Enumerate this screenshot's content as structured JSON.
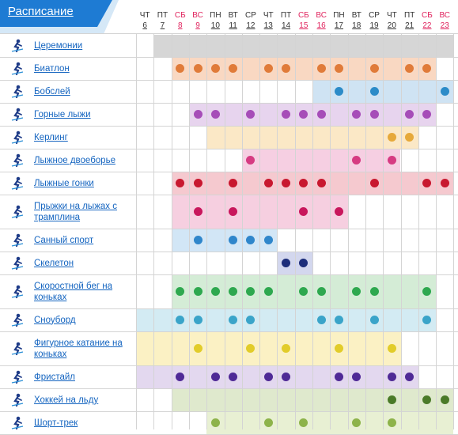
{
  "header": {
    "title": "Расписание"
  },
  "colors": {
    "header_blue": "#1e7bd3",
    "link": "#1565c0",
    "weekend": "#e0245e",
    "grid": "#d4d4d4",
    "icon": "#1f3c88"
  },
  "days": [
    {
      "dow": "ЧТ",
      "date": "6",
      "weekend": false
    },
    {
      "dow": "ПТ",
      "date": "7",
      "weekend": false
    },
    {
      "dow": "СБ",
      "date": "8",
      "weekend": true
    },
    {
      "dow": "ВС",
      "date": "9",
      "weekend": true
    },
    {
      "dow": "ПН",
      "date": "10",
      "weekend": false
    },
    {
      "dow": "ВТ",
      "date": "11",
      "weekend": false
    },
    {
      "dow": "СР",
      "date": "12",
      "weekend": false
    },
    {
      "dow": "ЧТ",
      "date": "13",
      "weekend": false
    },
    {
      "dow": "ПТ",
      "date": "14",
      "weekend": false
    },
    {
      "dow": "СБ",
      "date": "15",
      "weekend": true
    },
    {
      "dow": "ВС",
      "date": "16",
      "weekend": true
    },
    {
      "dow": "ПН",
      "date": "17",
      "weekend": false
    },
    {
      "dow": "ВТ",
      "date": "18",
      "weekend": false
    },
    {
      "dow": "СР",
      "date": "19",
      "weekend": false
    },
    {
      "dow": "ЧТ",
      "date": "20",
      "weekend": false
    },
    {
      "dow": "ПТ",
      "date": "21",
      "weekend": false
    },
    {
      "dow": "СБ",
      "date": "22",
      "weekend": true
    },
    {
      "dow": "ВС",
      "date": "23",
      "weekend": true
    }
  ],
  "sports": [
    {
      "name": "Церемонии",
      "icon": "ceremony-icon",
      "band": "#d6d6d6",
      "dot": null,
      "span": [
        1,
        17
      ],
      "finals": []
    },
    {
      "name": "Биатлон",
      "icon": "biathlon-icon",
      "band": "#f9d8c2",
      "dot": "#e07b39",
      "span": [
        2,
        16
      ],
      "finals": [
        2,
        3,
        4,
        5,
        7,
        8,
        10,
        11,
        13,
        15,
        16
      ]
    },
    {
      "name": "Бобслей",
      "icon": "bobsleigh-icon",
      "band": "#cfe3f3",
      "dot": "#2c8bc8",
      "span": [
        10,
        17
      ],
      "finals": [
        11,
        13,
        17
      ]
    },
    {
      "name": "Горные лыжи",
      "icon": "alpine-skiing-icon",
      "band": "#e7d4ee",
      "dot": "#a64db8",
      "span": [
        3,
        16
      ],
      "finals": [
        3,
        4,
        6,
        8,
        9,
        10,
        12,
        13,
        15,
        16
      ]
    },
    {
      "name": "Керлинг",
      "icon": "curling-icon",
      "band": "#fbe8c6",
      "dot": "#e6a93a",
      "span": [
        4,
        15
      ],
      "finals": [
        14,
        15
      ]
    },
    {
      "name": "Лыжное двоеборье",
      "icon": "nordic-combined-icon",
      "band": "#f6cfe2",
      "dot": "#d63b82",
      "span": [
        6,
        14
      ],
      "finals": [
        6,
        12,
        14
      ]
    },
    {
      "name": "Лыжные гонки",
      "icon": "cross-country-icon",
      "band": "#f5c9cf",
      "dot": "#c8182f",
      "span": [
        2,
        17
      ],
      "finals": [
        2,
        3,
        5,
        7,
        8,
        9,
        10,
        13,
        16,
        17
      ]
    },
    {
      "name": "Прыжки на лыжах с трамплина",
      "icon": "ski-jumping-icon",
      "band": "#f6cfe0",
      "dot": "#c8175c",
      "span": [
        2,
        11
      ],
      "finals": [
        3,
        5,
        9,
        11
      ]
    },
    {
      "name": "Санный спорт",
      "icon": "luge-icon",
      "band": "#d2e6f6",
      "dot": "#2f86cb",
      "span": [
        2,
        7
      ],
      "finals": [
        3,
        5,
        6,
        7
      ]
    },
    {
      "name": "Скелетон",
      "icon": "skeleton-icon",
      "band": "#d3d7ee",
      "dot": "#1d2d7a",
      "span": [
        8,
        9
      ],
      "finals": [
        8,
        9
      ]
    },
    {
      "name": "Скоростной бег на коньках",
      "icon": "speed-skating-icon",
      "band": "#d4ecd6",
      "dot": "#2ea84f",
      "span": [
        2,
        16
      ],
      "finals": [
        2,
        3,
        4,
        5,
        6,
        7,
        9,
        10,
        12,
        13,
        16
      ]
    },
    {
      "name": "Сноуборд",
      "icon": "snowboard-icon",
      "band": "#d3ebf3",
      "dot": "#3aa4c9",
      "span": [
        0,
        16
      ],
      "finals": [
        2,
        3,
        5,
        6,
        10,
        11,
        13,
        16
      ]
    },
    {
      "name": "Фигурное катание на коньках",
      "icon": "figure-skating-icon",
      "band": "#fbf1c4",
      "dot": "#e2cc2a",
      "span": [
        0,
        14
      ],
      "finals": [
        3,
        6,
        8,
        11,
        14
      ]
    },
    {
      "name": "Фристайл",
      "icon": "freestyle-icon",
      "band": "#e3d8ef",
      "dot": "#4f2a96",
      "span": [
        0,
        15
      ],
      "finals": [
        2,
        4,
        5,
        7,
        8,
        11,
        12,
        14,
        15
      ]
    },
    {
      "name": "Хоккей на льду",
      "icon": "ice-hockey-icon",
      "band": "#dfe9cd",
      "dot": "#4a7a28",
      "span": [
        2,
        17
      ],
      "finals": [
        14,
        16,
        17
      ]
    },
    {
      "name": "Шорт-трек",
      "icon": "short-track-icon",
      "band": "#e8f0d3",
      "dot": "#8db34a",
      "span": [
        4,
        17
      ],
      "finals": [
        4,
        7,
        9,
        12,
        14
      ]
    }
  ]
}
